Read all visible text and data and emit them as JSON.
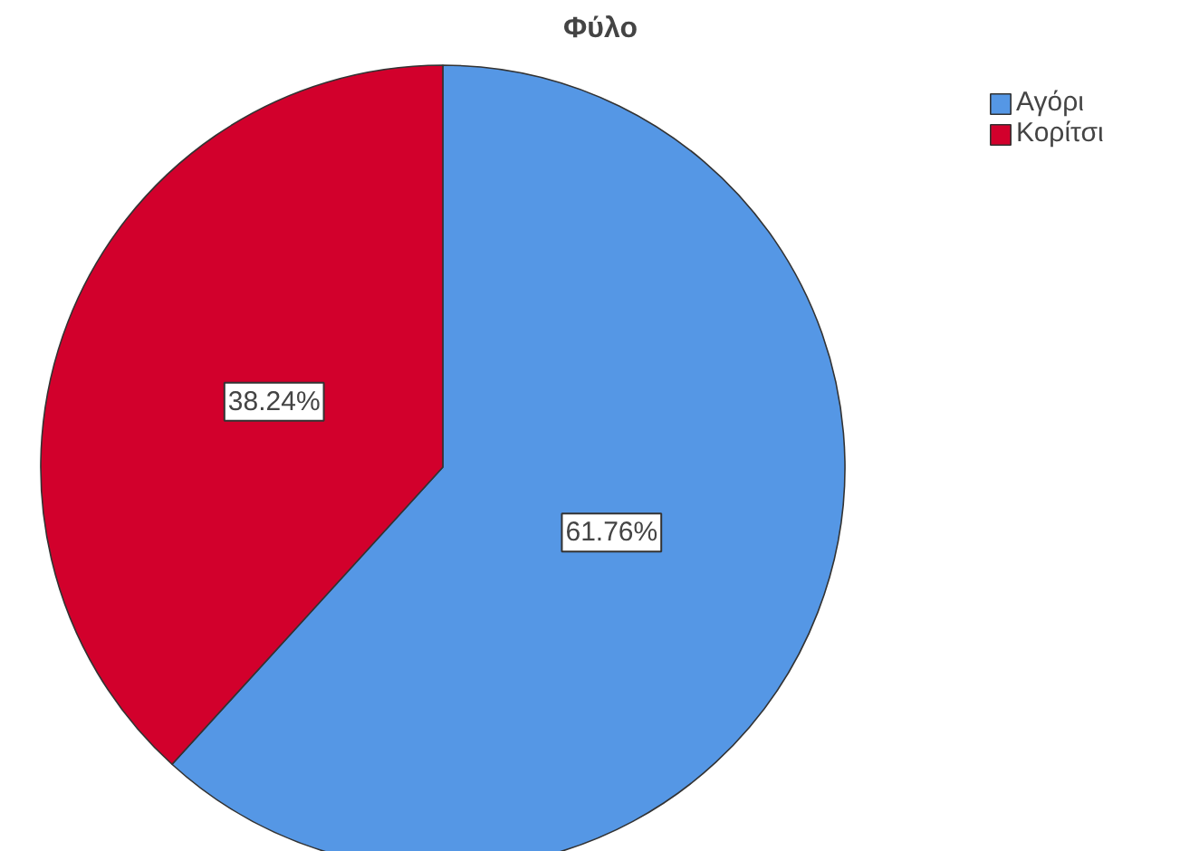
{
  "chart_data": {
    "type": "pie",
    "title": "Φύλο",
    "categories": [
      "Αγόρι",
      "Κορίτσι"
    ],
    "values": [
      61.76,
      38.24
    ],
    "colors": [
      "#5597e5",
      "#d2002c"
    ],
    "value_labels": [
      "61.76%",
      "38.24%"
    ],
    "legend": "top right"
  }
}
